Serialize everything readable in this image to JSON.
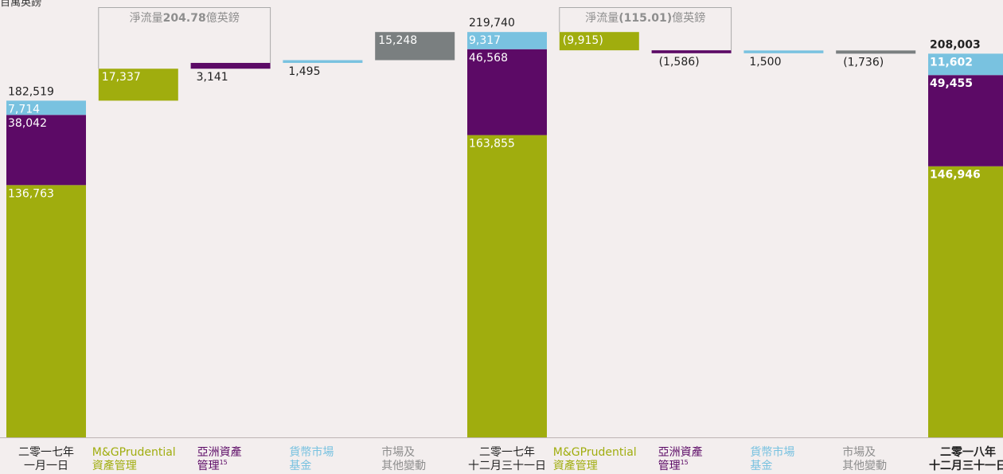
{
  "unit_label": "百萬英鎊",
  "colors": {
    "green": "#a0ad0e",
    "purple": "#5c0a66",
    "blue": "#79c2e0",
    "gray": "#7a7f80",
    "baseline": "#bfb5b5",
    "bracket": "#aaaaaa",
    "text_dark": "#222222",
    "text_white": "#ffffff",
    "label_gray": "#8e8e8e"
  },
  "chart_data": {
    "type": "bar",
    "subtype": "waterfall-stacked",
    "ylim": [
      0,
      220000
    ],
    "categories": [
      [
        "二零一七年",
        "一月一日"
      ],
      [
        "M&GPrudential",
        "資產管理"
      ],
      [
        "亞洲資產",
        "管理"
      ],
      [
        "貨幣市場",
        "基金"
      ],
      [
        "市場及",
        "其他變動"
      ],
      [
        "二零一七年",
        "十二月三十一日"
      ],
      [
        "M&GPrudential",
        "資產管理"
      ],
      [
        "亞洲資產",
        "管理"
      ],
      [
        "貨幣市場",
        "基金"
      ],
      [
        "市場及",
        "其他變動"
      ],
      [
        "二零一八年",
        "十二月三十一日"
      ]
    ],
    "category_colors": [
      "dark",
      "green",
      "purple",
      "blue",
      "gray",
      "dark",
      "green",
      "purple",
      "blue",
      "gray",
      "dark"
    ],
    "category_bold": [
      false,
      false,
      false,
      false,
      false,
      false,
      false,
      false,
      false,
      false,
      true
    ],
    "category_superscript": [
      "",
      "",
      "15",
      "",
      "",
      "",
      "",
      "15",
      "",
      "",
      ""
    ],
    "totals": [
      {
        "index": 0,
        "total_label": "182,519",
        "bold": false,
        "segments": [
          {
            "name": "M&GPrudential",
            "color": "green",
            "value": 136763,
            "label": "136,763"
          },
          {
            "name": "亞洲資產管理",
            "color": "purple",
            "value": 38042,
            "label": "38,042"
          },
          {
            "name": "貨幣市場基金",
            "color": "blue",
            "value": 7714,
            "label": "7,714"
          }
        ]
      },
      {
        "index": 5,
        "total_label": "219,740",
        "bold": false,
        "segments": [
          {
            "name": "M&GPrudential",
            "color": "green",
            "value": 163855,
            "label": "163,855"
          },
          {
            "name": "亞洲資產管理",
            "color": "purple",
            "value": 46568,
            "label": "46,568"
          },
          {
            "name": "貨幣市場基金",
            "color": "blue",
            "value": 9317,
            "label": "9,317"
          }
        ]
      },
      {
        "index": 10,
        "total_label": "208,003",
        "bold": true,
        "segments": [
          {
            "name": "M&GPrudential",
            "color": "green",
            "value": 146946,
            "label": "146,946"
          },
          {
            "name": "亞洲資產管理",
            "color": "purple",
            "value": 49455,
            "label": "49,455"
          },
          {
            "name": "貨幣市場基金",
            "color": "blue",
            "value": 11602,
            "label": "11,602"
          }
        ]
      }
    ],
    "changes": [
      {
        "index": 1,
        "color": "green",
        "value": 17337,
        "label": "17,337",
        "label_pos": "inside"
      },
      {
        "index": 2,
        "color": "purple",
        "value": 3141,
        "label": "3,141",
        "label_pos": "below"
      },
      {
        "index": 3,
        "color": "blue",
        "value": 1495,
        "label": "1,495",
        "label_pos": "below"
      },
      {
        "index": 4,
        "color": "gray",
        "value": 15248,
        "label": "15,248",
        "label_pos": "inside"
      },
      {
        "index": 6,
        "color": "green",
        "value": -9915,
        "label": "(9,915)",
        "label_pos": "inside"
      },
      {
        "index": 7,
        "color": "purple",
        "value": -1586,
        "label": "(1,586)",
        "label_pos": "below"
      },
      {
        "index": 8,
        "color": "blue",
        "value": 1500,
        "label": "1,500",
        "label_pos": "below"
      },
      {
        "index": 9,
        "color": "gray",
        "value": -1736,
        "label": "(1,736)",
        "label_pos": "below"
      }
    ],
    "net_flow_boxes": [
      {
        "from_index": 1,
        "to_index": 2,
        "prefix": "淨流量",
        "value": "204.78",
        "suffix": "億英鎊"
      },
      {
        "from_index": 6,
        "to_index": 7,
        "prefix": "淨流量",
        "value": "(115.01)",
        "suffix": "億英鎊"
      }
    ]
  }
}
